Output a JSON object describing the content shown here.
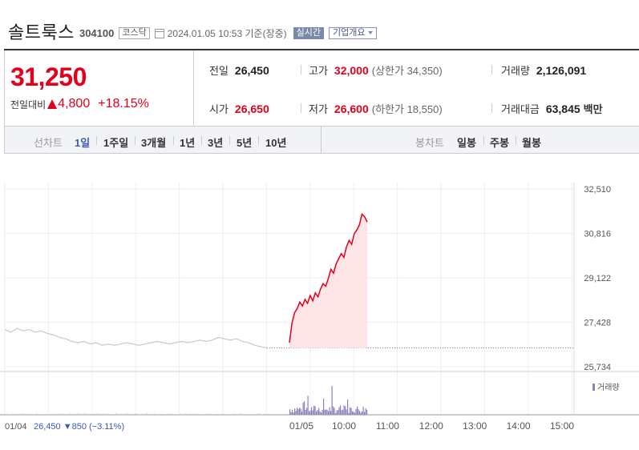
{
  "header": {
    "company_name": "솔트룩스",
    "stock_code": "304100",
    "market": "코스닥",
    "timestamp": "2024.01.05 10:53  기준(장중)",
    "realtime_label": "실시간",
    "company_info_label": "기업개요"
  },
  "price": {
    "current": "31,250",
    "change_label": "전일대비",
    "change_amount": "4,800",
    "change_percent": "+18.15%"
  },
  "stats": {
    "prev_close_label": "전일",
    "prev_close": "26,450",
    "open_label": "시가",
    "open": "26,650",
    "high_label": "고가",
    "high": "32,000",
    "upper_limit": "(상한가 34,350)",
    "low_label": "저가",
    "low": "26,600",
    "lower_limit": "(하한가 18,550)",
    "volume_label": "거래량",
    "volume": "2,126,091",
    "trade_value_label": "거래대금",
    "trade_value": "63,845",
    "trade_value_unit": "백만"
  },
  "tabs": {
    "line_chart_label": "선차트",
    "line_periods": [
      "1일",
      "1주일",
      "3개월",
      "1년",
      "3년",
      "5년",
      "10년"
    ],
    "active_period": "1일",
    "candle_chart_label": "봉차트",
    "candle_periods": [
      "일봉",
      "주봉",
      "월봉"
    ]
  },
  "colors": {
    "up": "#e2001a",
    "accent": "#3b5ab4",
    "volume": "#8e7fc0",
    "prev_day_line": "#c8c8c8"
  },
  "chart_data": {
    "type": "line",
    "y_ticks": [
      "32,510",
      "30,816",
      "29,122",
      "27,428",
      "25,734"
    ],
    "ylim": [
      25734,
      32510
    ],
    "x_ticks": [
      "01/05",
      "10:00",
      "11:00",
      "12:00",
      "13:00",
      "14:00",
      "15:00"
    ],
    "volume_label": "거래량",
    "prev_day_label": "01/04",
    "prev_day_close": "26,450",
    "prev_day_change": "▼850",
    "prev_day_percent": "(−3.11%)",
    "baseline": 26450,
    "prev_day_series": [
      27150,
      27050,
      27200,
      27100,
      27150,
      27050,
      27100,
      27000,
      26950,
      26850,
      26800,
      26700,
      26650,
      26700,
      26600,
      26650,
      26550,
      26600,
      26550,
      26600,
      26650,
      26600,
      26550,
      26600,
      26650,
      26700,
      26650,
      26600,
      26650,
      26700,
      26650,
      26700,
      26750,
      26700,
      26750,
      26850,
      26800,
      26750,
      26800,
      26700,
      26650,
      26550,
      26500,
      26450
    ],
    "today_series": [
      26650,
      27400,
      27800,
      27950,
      28200,
      28050,
      28300,
      28150,
      28450,
      28250,
      28550,
      28400,
      28700,
      28900,
      28800,
      29100,
      29450,
      29300,
      29650,
      29850,
      30050,
      29900,
      30300,
      30550,
      30400,
      30800,
      30950,
      31150,
      31550,
      31450,
      31250
    ]
  }
}
